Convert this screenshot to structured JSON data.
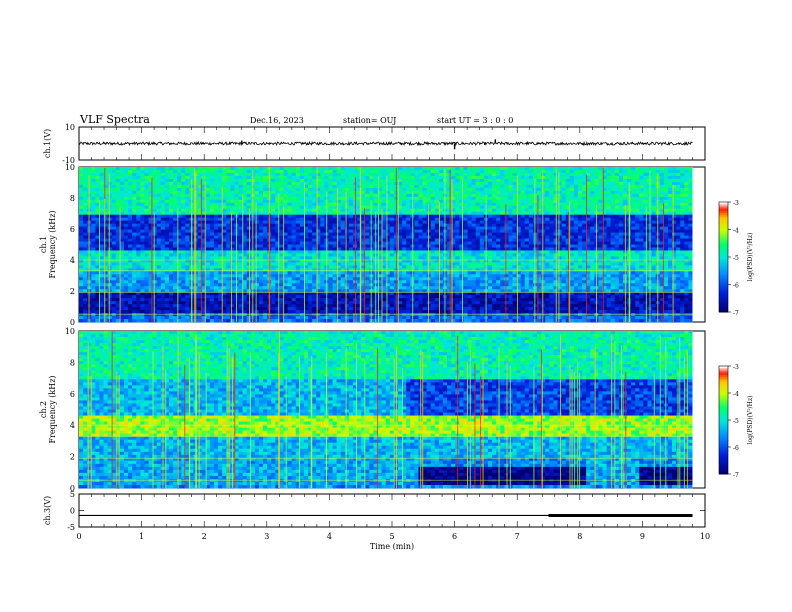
{
  "header": {
    "title": "VLF Spectra",
    "date": "Dec.16, 2023",
    "station": "station= OUJ",
    "start": "start  UT  =   3  : 0   : 0"
  },
  "colorbar": {
    "label": "log(PSD)(V²/Hz)",
    "ticks": [
      "-3",
      "-4",
      "-5",
      "-6",
      "-7"
    ],
    "colors": [
      "#ffffff",
      "#ff0000",
      "#ffff00",
      "#00ff80",
      "#00c8ff",
      "#0050ff",
      "#000080"
    ]
  },
  "chart_data": [
    {
      "type": "line",
      "panel": "ch1-waveform",
      "ylabel": "ch.1(V)",
      "ylim": [
        -10,
        10
      ],
      "yticks": [
        "10",
        "-10"
      ],
      "xlim": [
        0,
        10
      ],
      "baseline": 0,
      "spikes": [
        {
          "x": 2.6,
          "y": 1.8
        },
        {
          "x": 6.0,
          "y": -3.5
        },
        {
          "x": 6.65,
          "y": 2.5
        }
      ]
    },
    {
      "type": "heatmap",
      "panel": "ch1-spectrogram",
      "ylabel": "ch.1\nFrequency (kHz)",
      "ylim": [
        0,
        10
      ],
      "yticks": [
        "10",
        "8",
        "6",
        "4",
        "2",
        "0"
      ],
      "xlim": [
        0,
        10
      ],
      "zlim": [
        -7,
        -3
      ],
      "zlabel": "log(PSD)(V²/Hz)"
    },
    {
      "type": "heatmap",
      "panel": "ch2-spectrogram",
      "ylabel": "ch.2\nFrequency (kHz)",
      "ylim": [
        0,
        10
      ],
      "yticks": [
        "10",
        "8",
        "6",
        "4",
        "2",
        "0"
      ],
      "xlim": [
        0,
        10
      ],
      "zlim": [
        -7,
        -3
      ],
      "zlabel": "log(PSD)(V²/Hz)"
    },
    {
      "type": "line",
      "panel": "ch3-waveform",
      "ylabel": "ch.3(V)",
      "ylim": [
        -5,
        5
      ],
      "yticks": [
        "5",
        "0",
        "-5"
      ],
      "xlim": [
        0,
        10
      ],
      "xticks": [
        "0",
        "1",
        "2",
        "3",
        "4",
        "5",
        "6",
        "7",
        "8",
        "9",
        "10"
      ],
      "xlabel": "Time (min)",
      "segments": [
        {
          "x": [
            0,
            7.5
          ],
          "y": -1.5
        },
        {
          "x": [
            7.5,
            9.8
          ],
          "y": -1.5,
          "thick": true
        }
      ]
    }
  ]
}
